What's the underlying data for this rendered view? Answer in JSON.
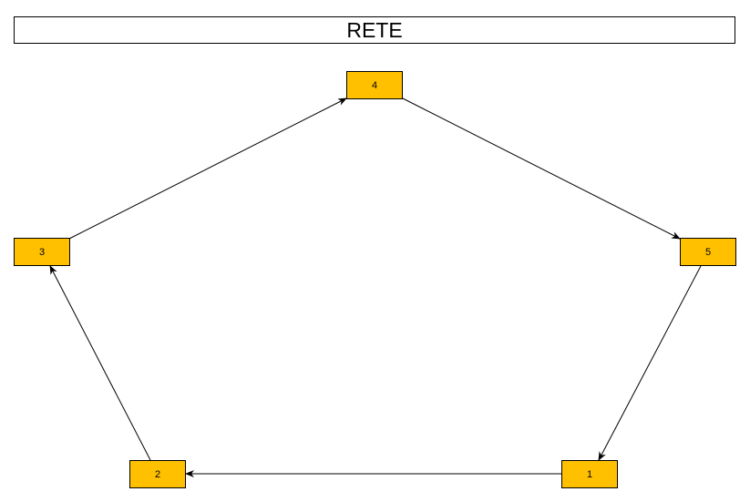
{
  "title": "RETE",
  "colors": {
    "node_fill": "#FFC000",
    "node_border": "#000000",
    "edge": "#000000"
  },
  "nodes": [
    {
      "id": "4",
      "label": "4"
    },
    {
      "id": "5",
      "label": "5"
    },
    {
      "id": "3",
      "label": "3"
    },
    {
      "id": "2",
      "label": "2"
    },
    {
      "id": "1",
      "label": "1"
    }
  ],
  "edges": [
    {
      "from": "4",
      "to": "5"
    },
    {
      "from": "5",
      "to": "1"
    },
    {
      "from": "1",
      "to": "2"
    },
    {
      "from": "2",
      "to": "3"
    },
    {
      "from": "3",
      "to": "4"
    }
  ]
}
